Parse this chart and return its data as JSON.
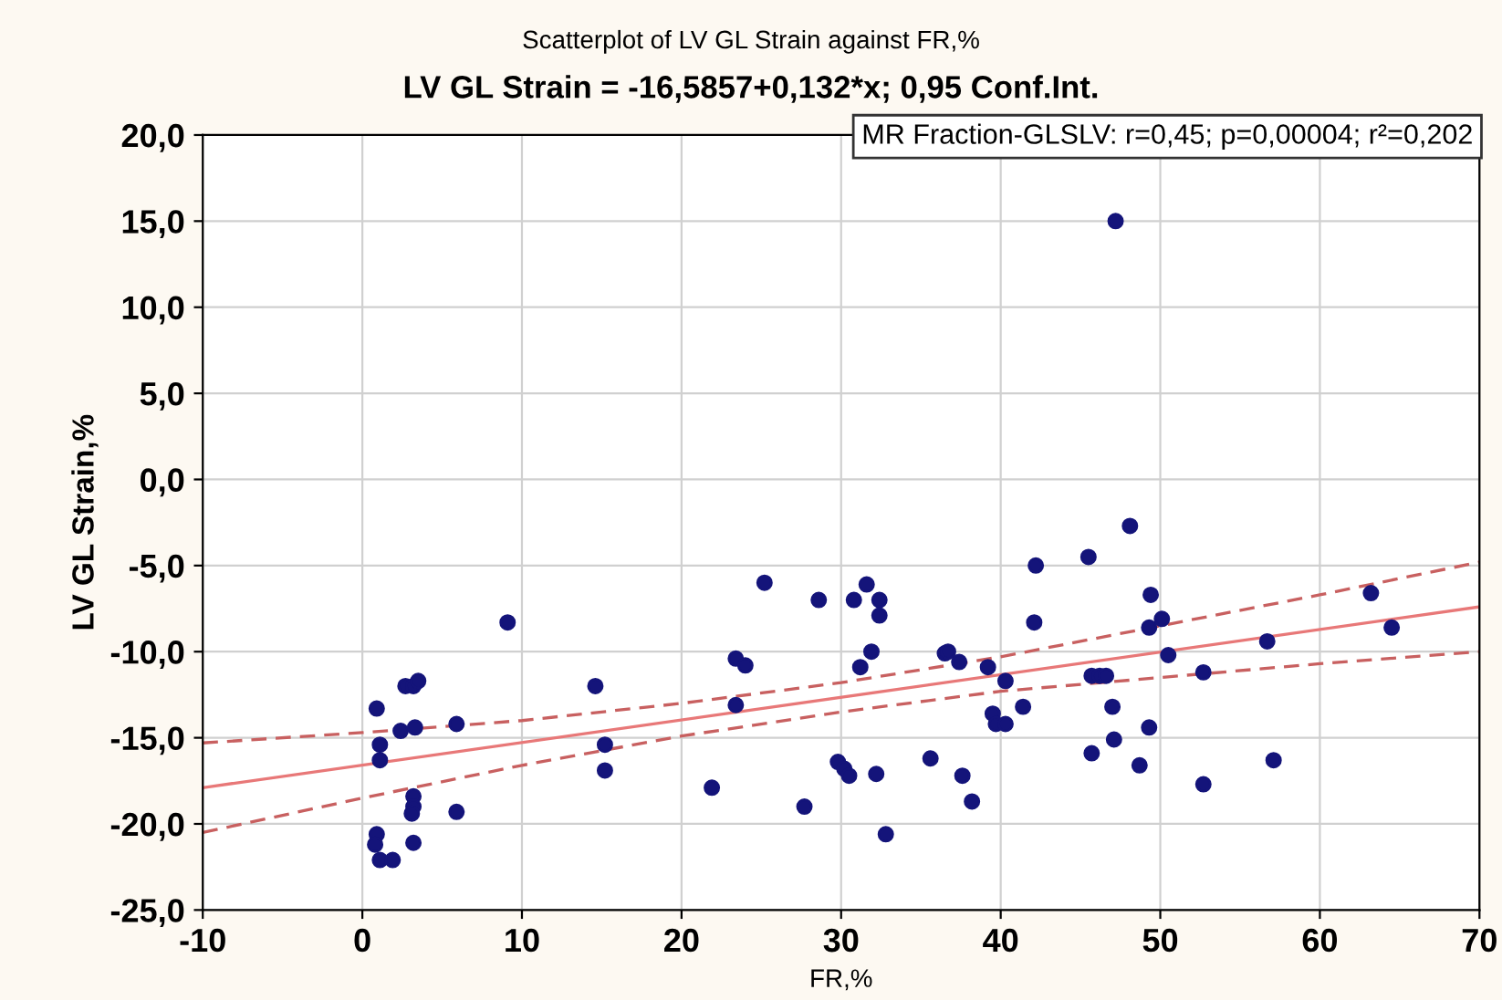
{
  "chart_data": {
    "type": "scatter",
    "title": "Scatterplot of LV GL Strain against FR,%",
    "subtitle": "LV GL Strain = -16,5857+0,132*x; 0,95 Conf.Int.",
    "xlabel": "FR,%",
    "ylabel": "LV GL Strain,%",
    "annotations": [
      "MR Fraction-GLSLV: r=0,45; p=0,00004; r²=0,202"
    ],
    "xlim": [
      -10,
      70
    ],
    "xticks": [
      -10,
      0,
      10,
      20,
      30,
      40,
      50,
      60,
      70
    ],
    "ylim": [
      -25,
      20
    ],
    "yticks": [
      {
        "value": -25,
        "label": "-25,0"
      },
      {
        "value": -20,
        "label": "-20,0"
      },
      {
        "value": -15,
        "label": "-15,0"
      },
      {
        "value": -10,
        "label": "-10,0"
      },
      {
        "value": -5,
        "label": "-5,0"
      },
      {
        "value": 0,
        "label": "0,0"
      },
      {
        "value": 5,
        "label": "5,0"
      },
      {
        "value": 10,
        "label": "10,0"
      },
      {
        "value": 15,
        "label": "15,0"
      },
      {
        "value": 20,
        "label": "20,0"
      }
    ],
    "grid": true,
    "marker": "circle",
    "legend": false,
    "series": [
      {
        "color": "#14147a",
        "x": [
          0.9,
          1.1,
          1.1,
          0.9,
          0.8,
          1.1,
          1.9,
          2.4,
          2.7,
          3.2,
          3.5,
          3.3,
          3.2,
          3.2,
          3.1,
          3.2,
          5.9,
          5.9,
          9.1,
          14.6,
          15.2,
          15.2,
          21.9,
          23.4,
          24.0,
          23.4,
          25.2,
          27.7,
          28.6,
          29.8,
          30.2,
          30.5,
          30.8,
          31.6,
          32.4,
          32.4,
          31.9,
          31.2,
          32.2,
          32.8,
          35.6,
          36.5,
          36.7,
          37.4,
          37.6,
          38.2,
          39.2,
          39.5,
          39.7,
          40.3,
          40.3,
          41.4,
          42.1,
          42.2,
          47.2,
          48.1,
          45.5,
          49.4,
          49.3,
          50.1,
          50.5,
          45.7,
          46.2,
          46.6,
          47.0,
          49.3,
          47.1,
          45.7,
          48.7,
          52.7,
          52.7,
          56.7,
          57.1,
          63.2,
          64.5
        ],
        "values": [
          -13.3,
          -15.4,
          -16.3,
          -20.6,
          -21.2,
          -22.1,
          -22.1,
          -14.6,
          -12.0,
          -12.0,
          -11.7,
          -14.4,
          -18.4,
          -19.0,
          -19.4,
          -21.1,
          -14.2,
          -19.3,
          -8.3,
          -12.0,
          -15.4,
          -16.9,
          -17.9,
          -10.4,
          -10.8,
          -13.1,
          -6.0,
          -19.0,
          -7.0,
          -16.4,
          -16.8,
          -17.2,
          -7.0,
          -6.1,
          -7.0,
          -7.9,
          -10.0,
          -10.9,
          -17.1,
          -20.6,
          -16.2,
          -10.1,
          -10.0,
          -10.6,
          -17.2,
          -18.7,
          -10.9,
          -13.6,
          -14.2,
          -14.2,
          -11.7,
          -13.2,
          -8.3,
          -5.0,
          15.0,
          -2.7,
          -4.5,
          -6.7,
          -8.6,
          -8.1,
          -10.2,
          -11.4,
          -11.4,
          -11.4,
          -13.2,
          -14.4,
          -15.1,
          -15.9,
          -16.6,
          -11.2,
          -17.7,
          -9.4,
          -16.3,
          -6.6,
          -8.6
        ]
      },
      {
        "type": "line",
        "color": "#e87878",
        "marker": "none",
        "line_style": "solid",
        "x": [
          -10,
          70
        ],
        "values": [
          -17.9,
          -7.4
        ]
      },
      {
        "type": "line",
        "color": "#c86060",
        "marker": "none",
        "line_style": "dashed",
        "x": [
          -10,
          0,
          10,
          20,
          30,
          40,
          50,
          60,
          70
        ],
        "values": [
          -15.3,
          -14.7,
          -14.0,
          -13.0,
          -11.8,
          -10.3,
          -8.5,
          -6.7,
          -4.8
        ]
      },
      {
        "type": "line",
        "color": "#c86060",
        "marker": "none",
        "line_style": "dashed",
        "x": [
          -10,
          0,
          10,
          20,
          30,
          40,
          50,
          60,
          70
        ],
        "values": [
          -20.5,
          -18.5,
          -16.6,
          -14.9,
          -13.5,
          -12.3,
          -11.5,
          -10.7,
          -10.0
        ]
      }
    ]
  }
}
